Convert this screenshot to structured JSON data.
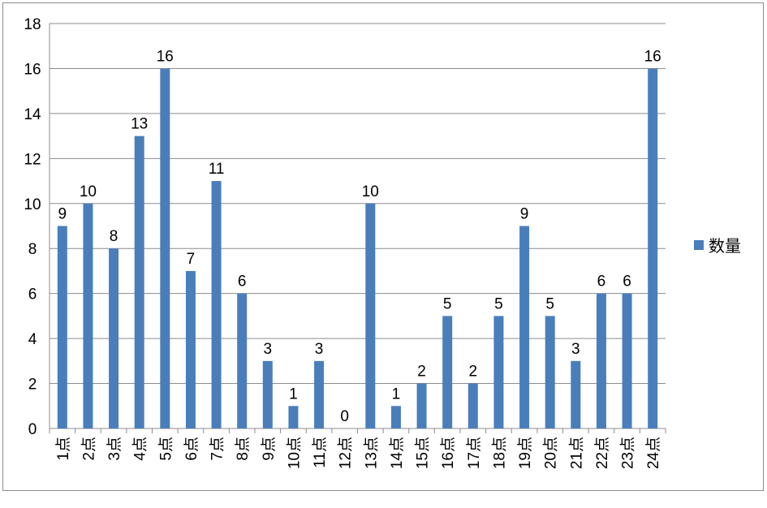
{
  "chart_data": {
    "type": "bar",
    "categories": [
      "1点",
      "2点",
      "3点",
      "4点",
      "5点",
      "6点",
      "7点",
      "8点",
      "9点",
      "10点",
      "11点",
      "12点",
      "13点",
      "14点",
      "15点",
      "16点",
      "17点",
      "18点",
      "19点",
      "20点",
      "21点",
      "22点",
      "23点",
      "24点"
    ],
    "series": [
      {
        "name": "数量",
        "values": [
          9,
          10,
          8,
          13,
          16,
          7,
          11,
          6,
          3,
          1,
          3,
          0,
          10,
          1,
          2,
          5,
          2,
          5,
          9,
          5,
          3,
          6,
          6,
          16
        ]
      }
    ],
    "ylim": [
      0,
      18
    ],
    "yticks": [
      0,
      2,
      4,
      6,
      8,
      10,
      12,
      14,
      16,
      18
    ],
    "grid": true,
    "legend_position": "right",
    "data_labels": true,
    "colors": {
      "bar": "#4a7ebb",
      "grid": "#8c8c8c"
    }
  }
}
